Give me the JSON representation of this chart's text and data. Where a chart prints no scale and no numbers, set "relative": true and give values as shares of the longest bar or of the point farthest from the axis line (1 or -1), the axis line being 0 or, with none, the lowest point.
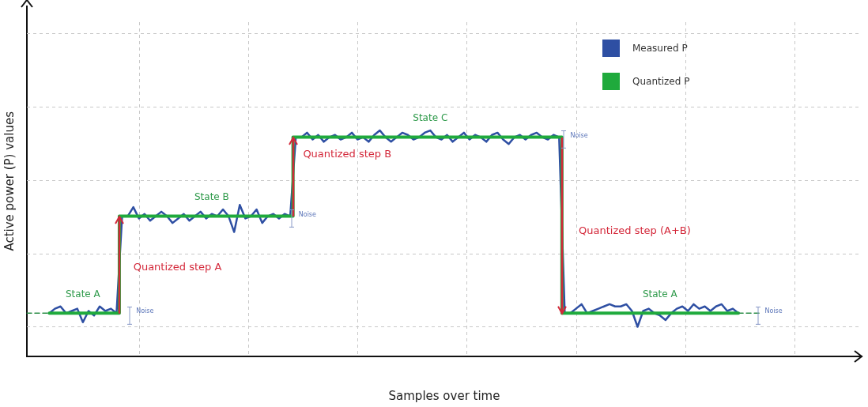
{
  "chart_data": {
    "type": "line",
    "relative": true,
    "xlabel": "Samples over time",
    "ylabel": "Active power (P) values",
    "grid": true,
    "legend": "top right",
    "marker": "none",
    "categories": [
      null,
      null,
      null,
      null,
      null,
      null,
      null,
      null,
      null,
      null,
      null,
      null,
      null,
      null,
      null,
      null,
      null,
      null,
      null,
      null,
      null,
      null,
      null,
      null,
      null,
      null,
      null,
      null,
      null,
      null,
      null,
      null,
      null,
      null,
      null,
      null,
      null,
      null,
      null,
      null,
      null,
      null,
      null,
      null,
      null,
      null,
      null,
      null,
      null,
      null,
      null,
      null,
      null,
      null,
      null,
      null,
      null,
      null,
      null,
      null,
      null,
      null,
      null,
      null,
      null,
      null,
      null,
      null,
      null,
      null,
      null,
      null,
      null,
      null,
      null,
      null,
      null,
      null,
      null,
      null,
      null,
      null,
      null,
      null,
      null,
      null,
      null,
      null,
      null,
      null,
      null,
      null,
      null,
      null,
      null,
      null,
      null,
      null,
      null,
      null,
      null,
      null,
      null,
      null,
      null,
      null,
      null,
      null,
      null,
      null,
      null,
      null,
      null,
      null,
      null,
      null,
      null,
      null,
      null,
      null,
      null,
      null,
      null,
      null,
      null,
      null,
      null,
      null,
      null,
      null,
      null,
      null,
      null,
      null,
      null,
      null,
      null,
      null,
      null,
      null,
      null,
      null,
      null,
      null,
      null,
      null,
      null,
      null,
      null,
      null
    ],
    "series": [
      {
        "name": "Measured P",
        "color": "#2e4fa3",
        "line_style": "solid",
        "values": [
          null,
          null,
          null,
          null,
          0.19,
          0.21,
          0.22,
          0.19,
          0.2,
          0.21,
          0.15,
          0.2,
          0.18,
          0.22,
          0.2,
          0.21,
          0.19,
          0.62,
          0.62,
          0.66,
          0.61,
          0.63,
          0.6,
          0.62,
          0.64,
          0.62,
          0.59,
          0.61,
          0.63,
          0.6,
          0.62,
          0.64,
          0.61,
          0.63,
          0.62,
          0.65,
          0.62,
          0.55,
          0.67,
          0.61,
          0.62,
          0.65,
          0.59,
          0.62,
          0.63,
          0.61,
          0.63,
          0.62,
          0.97,
          0.97,
          0.99,
          0.96,
          0.98,
          0.95,
          0.97,
          0.98,
          0.96,
          0.97,
          0.99,
          0.96,
          0.97,
          0.95,
          0.98,
          1.0,
          0.97,
          0.95,
          0.97,
          0.99,
          0.98,
          0.96,
          0.97,
          0.99,
          1.0,
          0.97,
          0.96,
          0.98,
          0.95,
          0.97,
          0.99,
          0.96,
          0.98,
          0.97,
          0.95,
          0.98,
          0.99,
          0.96,
          0.94,
          0.97,
          0.98,
          0.96,
          0.98,
          0.99,
          0.97,
          0.96,
          0.98,
          0.97,
          0.19,
          0.19,
          0.21,
          0.23,
          0.19,
          0.2,
          0.21,
          0.22,
          0.23,
          0.22,
          0.22,
          0.23,
          0.2,
          0.13,
          0.2,
          0.21,
          0.19,
          0.18,
          0.16,
          0.19,
          0.21,
          0.22,
          0.2,
          0.23,
          0.21,
          0.22,
          0.2,
          0.22,
          0.23,
          0.2,
          0.21,
          0.19,
          null,
          null,
          null,
          null,
          null,
          null,
          null,
          null,
          null,
          null,
          null,
          null,
          null,
          null,
          null,
          null,
          null,
          null,
          null,
          null,
          null,
          null
        ]
      },
      {
        "name": "Quantized P",
        "type": "step",
        "color": "#1faa3c",
        "line_style": "solid",
        "values": [
          null,
          null,
          null,
          null,
          0.19,
          0.19,
          0.19,
          0.19,
          0.19,
          0.19,
          0.19,
          0.19,
          0.19,
          0.19,
          0.19,
          0.19,
          0.19,
          0.62,
          0.62,
          0.62,
          0.62,
          0.62,
          0.62,
          0.62,
          0.62,
          0.62,
          0.62,
          0.62,
          0.62,
          0.62,
          0.62,
          0.62,
          0.62,
          0.62,
          0.62,
          0.62,
          0.62,
          0.62,
          0.62,
          0.62,
          0.62,
          0.62,
          0.62,
          0.62,
          0.62,
          0.62,
          0.62,
          0.62,
          0.97,
          0.97,
          0.97,
          0.97,
          0.97,
          0.97,
          0.97,
          0.97,
          0.97,
          0.97,
          0.97,
          0.97,
          0.97,
          0.97,
          0.97,
          0.97,
          0.97,
          0.97,
          0.97,
          0.97,
          0.97,
          0.97,
          0.97,
          0.97,
          0.97,
          0.97,
          0.97,
          0.97,
          0.97,
          0.97,
          0.97,
          0.97,
          0.97,
          0.97,
          0.97,
          0.97,
          0.97,
          0.97,
          0.97,
          0.97,
          0.97,
          0.97,
          0.97,
          0.97,
          0.97,
          0.97,
          0.97,
          0.97,
          0.19,
          0.19,
          0.19,
          0.19,
          0.19,
          0.19,
          0.19,
          0.19,
          0.19,
          0.19,
          0.19,
          0.19,
          0.19,
          0.19,
          0.19,
          0.19,
          0.19,
          0.19,
          0.19,
          0.19,
          0.19,
          0.19,
          0.19,
          0.19,
          0.19,
          0.19,
          0.19,
          0.19,
          0.19,
          0.19,
          0.19,
          0.19,
          null,
          null,
          null,
          null,
          null,
          null,
          null,
          null,
          null,
          null,
          null,
          null,
          null,
          null,
          null,
          null,
          null,
          null,
          null,
          null,
          null,
          null
        ]
      },
      {
        "color": "#2e8f4a",
        "line_style": "dashed",
        "values": [
          0.19,
          0.19,
          0.19,
          0.19,
          0.19,
          null,
          null,
          null,
          null,
          null,
          null,
          null,
          null,
          null,
          null,
          null,
          null,
          null,
          null,
          null,
          null,
          null,
          null,
          null,
          null,
          null,
          null,
          null,
          null,
          null,
          null,
          null,
          null,
          null,
          null,
          null,
          null,
          null,
          null,
          null,
          null,
          null,
          null,
          null,
          null,
          null,
          null,
          null,
          null,
          null,
          null,
          null,
          null,
          null,
          null,
          null,
          null,
          null,
          null,
          null,
          null,
          null,
          null,
          null,
          null,
          null,
          null,
          null,
          null,
          null,
          null,
          null,
          null,
          null,
          null,
          null,
          null,
          null,
          null,
          null,
          null,
          null,
          null,
          null,
          null,
          null,
          null,
          null,
          null,
          null,
          null,
          null,
          null,
          null,
          null,
          null,
          null,
          null,
          null,
          null,
          null,
          null,
          null,
          null,
          null,
          null,
          null,
          null,
          null,
          null,
          null,
          null,
          null,
          null,
          null,
          null,
          null,
          null,
          null,
          null,
          null,
          null,
          null,
          null,
          null,
          null,
          null,
          null,
          null,
          null,
          null,
          null,
          null,
          null,
          null,
          null,
          null,
          null,
          null,
          null,
          null,
          null,
          null,
          null,
          null,
          null,
          null,
          null,
          null,
          null
        ]
      },
      {
        "color": "#2e8f4a",
        "line_style": "dashed",
        "values": [
          null,
          null,
          null,
          null,
          null,
          null,
          null,
          null,
          null,
          null,
          null,
          null,
          null,
          null,
          null,
          null,
          null,
          null,
          null,
          null,
          null,
          null,
          null,
          null,
          null,
          null,
          null,
          null,
          null,
          null,
          null,
          null,
          null,
          null,
          null,
          null,
          null,
          null,
          null,
          null,
          null,
          null,
          null,
          null,
          null,
          null,
          null,
          null,
          null,
          null,
          null,
          null,
          null,
          null,
          null,
          null,
          null,
          null,
          null,
          null,
          null,
          null,
          null,
          null,
          null,
          null,
          null,
          null,
          null,
          null,
          null,
          null,
          null,
          null,
          null,
          null,
          null,
          null,
          null,
          null,
          null,
          null,
          null,
          null,
          null,
          null,
          null,
          null,
          null,
          null,
          null,
          null,
          null,
          null,
          null,
          null,
          null,
          null,
          null,
          null,
          null,
          null,
          null,
          null,
          null,
          null,
          null,
          null,
          null,
          null,
          null,
          null,
          null,
          null,
          null,
          null,
          null,
          null,
          null,
          null,
          null,
          null,
          null,
          null,
          null,
          null,
          null,
          0.19,
          0.19,
          0.19,
          0.19,
          0.19,
          null,
          null,
          null,
          null,
          null,
          null,
          null,
          null,
          null,
          null,
          null,
          null,
          null,
          null,
          null,
          null,
          null,
          null
        ]
      }
    ],
    "annotations": [
      "State A",
      "State B",
      "State C",
      "State A",
      "Quantized step A",
      "Quantized step B",
      "Quantized step (A+B)",
      "Noise",
      "Noise",
      "Noise",
      "Noise"
    ]
  }
}
